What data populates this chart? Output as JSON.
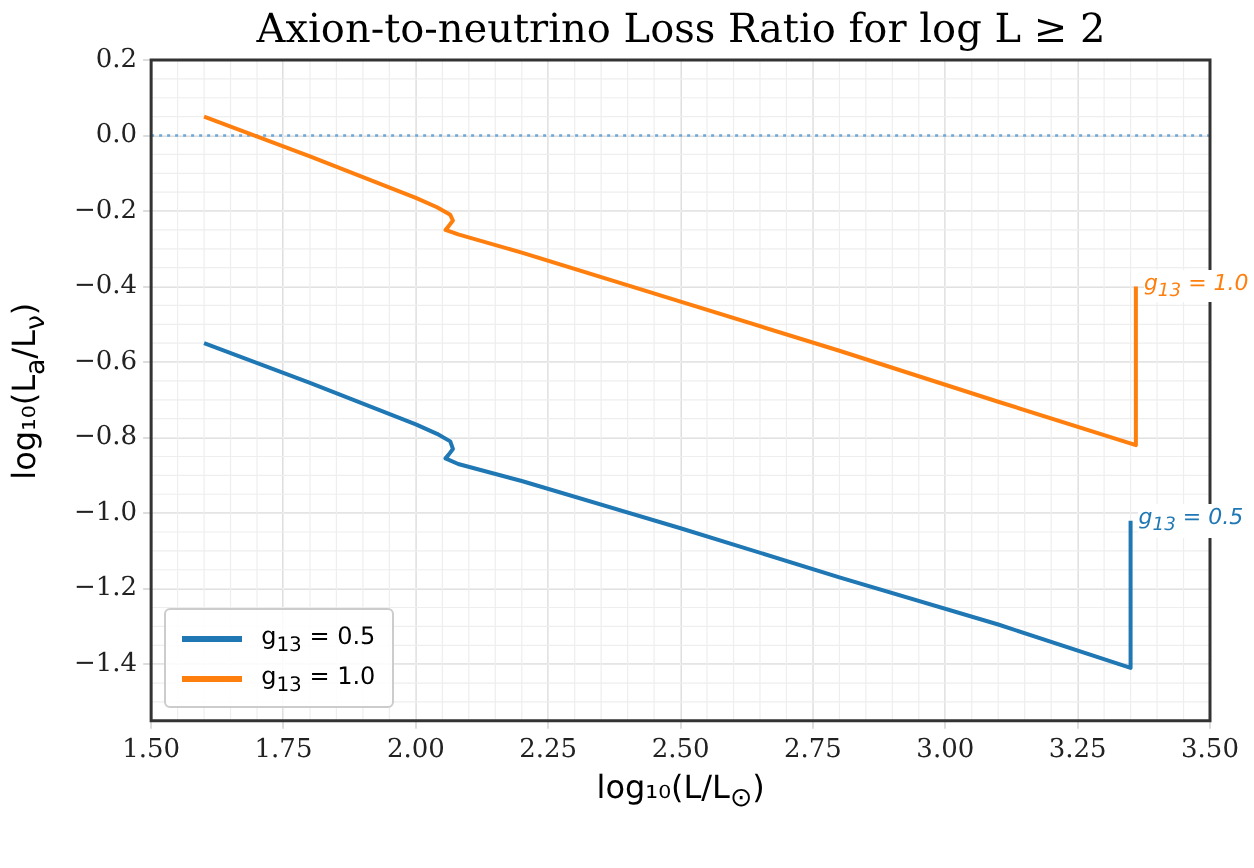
{
  "chart_data": {
    "type": "line",
    "title": "Axion-to-neutrino Loss Ratio for log L ≥ 2",
    "xlabel": "log₁₀(L/L$_{⊙}$)",
    "ylabel": "log₁₀(L$_{a}$/L$_{ν}$)",
    "series": [
      {
        "name": "g$_{13}$ = 0.5",
        "color": "#1f77b4",
        "x": [
          1.6,
          1.8,
          2.0,
          2.04,
          2.065,
          2.07,
          2.062,
          2.056,
          2.08,
          2.2,
          2.5,
          2.8,
          3.1,
          3.35,
          3.35
        ],
        "values": [
          -0.55,
          -0.655,
          -0.765,
          -0.79,
          -0.81,
          -0.83,
          -0.845,
          -0.855,
          -0.87,
          -0.915,
          -1.04,
          -1.17,
          -1.295,
          -1.41,
          -1.02
        ]
      },
      {
        "name": "g$_{13}$ = 1.0",
        "color": "#ff7f0e",
        "x": [
          1.6,
          1.8,
          2.0,
          2.04,
          2.065,
          2.07,
          2.062,
          2.056,
          2.08,
          2.2,
          2.5,
          2.8,
          3.1,
          3.36,
          3.36
        ],
        "values": [
          0.05,
          -0.055,
          -0.165,
          -0.19,
          -0.21,
          -0.225,
          -0.24,
          -0.25,
          -0.262,
          -0.31,
          -0.44,
          -0.57,
          -0.705,
          -0.82,
          -0.4
        ]
      }
    ],
    "annotations": [
      {
        "text": "g$_{13}$ = 0.5",
        "x": 3.35,
        "y": -1.02
      },
      {
        "text": "g$_{13}$ = 1.0",
        "x": 3.36,
        "y": -0.4
      }
    ],
    "ref_lines": [
      {
        "axis": "y",
        "value": 0,
        "color": "#6fa8d6",
        "line_style": "dotted"
      }
    ],
    "xlim": [
      1.5,
      3.5
    ],
    "xticks": [
      {
        "value": 1.5,
        "label": "1.50"
      },
      {
        "value": 1.75,
        "label": "1.75"
      },
      {
        "value": 2,
        "label": "2.00"
      },
      {
        "value": 2.25,
        "label": "2.25"
      },
      {
        "value": 2.5,
        "label": "2.50"
      },
      {
        "value": 2.75,
        "label": "2.75"
      },
      {
        "value": 3,
        "label": "3.00"
      },
      {
        "value": 3.25,
        "label": "3.25"
      },
      {
        "value": 3.5,
        "label": "3.50"
      }
    ],
    "ylim": [
      -1.55,
      0.2
    ],
    "yticks": [
      {
        "value": -1.4,
        "label": "−1.4"
      },
      {
        "value": -1.2,
        "label": "−1.2"
      },
      {
        "value": -1,
        "label": "−1.0"
      },
      {
        "value": -0.8,
        "label": "−0.8"
      },
      {
        "value": -0.6,
        "label": "−0.6"
      },
      {
        "value": -0.4,
        "label": "−0.4"
      },
      {
        "value": -0.2,
        "label": "−0.2"
      },
      {
        "value": 0,
        "label": "0.0"
      },
      {
        "value": 0.2,
        "label": "0.2"
      }
    ],
    "grid": true,
    "legend": "bottom left",
    "line_style": "solid",
    "marker": "none"
  }
}
